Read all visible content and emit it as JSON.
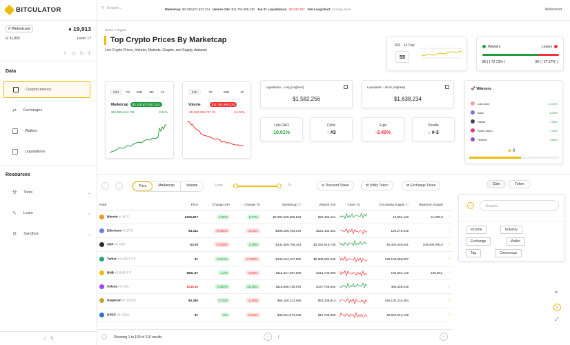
{
  "app": {
    "logo_text": "BITCULATOR"
  },
  "topbar": {
    "search_placeholder": "Search...",
    "marketcap_label": "Marketcap:",
    "marketcap_value": "$3,338,627,627,214",
    "volume_label": "Volume 24h:",
    "volume_value": "$11,762,988,230",
    "liq_label": "Jan 21 Liquidations:",
    "liq_value": "-$3,538,382",
    "longshort_label": "24H Long/short:",
    "longshort_value": "Coming Soon",
    "user": "Webwizard"
  },
  "profile": {
    "tag": "# Webwizard",
    "count": "19,913",
    "sub": "31,965",
    "level": "Level: 17"
  },
  "sidebar": {
    "data_title": "Data",
    "data_items": [
      {
        "label": "Cryptocurrency"
      },
      {
        "label": "Exchanges"
      },
      {
        "label": "Wallets"
      },
      {
        "label": "Liquidations"
      }
    ],
    "resources_title": "Resources",
    "resource_items": [
      {
        "label": "Tools"
      },
      {
        "label": "Learn"
      },
      {
        "label": "Sandbox"
      }
    ]
  },
  "breadcrumb": {
    "home": "Home",
    "sep": ">",
    "current": "Crypto"
  },
  "page": {
    "title": "Top Crypto Prices By Marketcap",
    "subtitle": "Live Crypto Prices, Volume, Markets, Graphs, and Supply datasets"
  },
  "rsi": {
    "label": "RSI - 14 Day",
    "value": "55"
  },
  "winners_losers": {
    "winners_label": "Winners",
    "losers_label": "Losers",
    "winners_count": "80",
    "winners_pct": "( 72.73% )",
    "losers_count": "30",
    "losers_pct": "( 27.27% )",
    "winners_share": 0.7273
  },
  "marketcap_card": {
    "tabs": [
      "24H",
      "7D",
      "90D",
      "3M",
      "All"
    ],
    "label": "Marketcap",
    "value": "$3,338,627,627,214",
    "change_abs": "$81,989,614,731",
    "change_pct": "2.91%"
  },
  "volume_card": {
    "tabs": [
      "24H",
      "7D",
      "90D",
      "All"
    ],
    "label": "Volume",
    "value": "$11,762,988,230",
    "change_abs": "-$5,288,396,767.76",
    "change_pct": "-44.08%"
  },
  "liquidations": {
    "long_label": "Liquidation - Long (Highest)",
    "long_value": "$1,582,256",
    "short_label": "Liquidation - short (Highest)",
    "short_value": "$1,638,234"
  },
  "mini_cards": [
    {
      "title": "Lido DAO",
      "value": "10.01%",
      "color": "#1f9c3a"
    },
    {
      "title": "Chiliz",
      "value": "#3",
      "color": "#222"
    },
    {
      "title": "Ergo",
      "value": "-3.49%",
      "color": "#e33"
    },
    {
      "title": "Pendle",
      "value": "#-3",
      "color": "#222"
    }
  ],
  "winners_card": {
    "title": "Winners",
    "rows": [
      {
        "name": "Lido DAO",
        "pct": "10.01%",
        "color": "#f5a0a0"
      },
      {
        "name": "Aave",
        "pct": "8.29%",
        "color": "#7a6fd6"
      },
      {
        "name": "Stellar",
        "pct": "7.38%",
        "color": "#444"
      },
      {
        "name": "Sushi Token",
        "pct": "7.22%",
        "color": "#e23a6a"
      },
      {
        "name": "Hedera",
        "pct": "5.65%",
        "color": "#8e4fd0"
      }
    ],
    "counter": "0"
  },
  "filters": {
    "segments": [
      "Price",
      "Marketcap",
      "Volume"
    ],
    "from_label": "From",
    "to_label": "To",
    "chips": [
      "Discount Token",
      "Utility Token",
      "Exchange Token"
    ]
  },
  "table": {
    "headers": [
      "Rank",
      "Price",
      "Change 24h",
      "Change 7d",
      "Marketcap",
      "Volume 24h",
      "Chart 7d",
      "Circulating Supply",
      "Maximum Supply"
    ],
    "rows": [
      {
        "name": "Bitcoin",
        "sym": "#1 BTC",
        "price": "$105,827",
        "c24": "1.89%",
        "c24up": true,
        "c7": "5.47%",
        "c7up": true,
        "mcap": "$2,092,825,880,534",
        "vol": "$26,492,224",
        "circ": "19,801,440",
        "max": "21,000,0",
        "color": "#f7931a"
      },
      {
        "name": "Ethereum",
        "sym": "#2 ETH",
        "price": "$3,311",
        "c24": "-0.005%",
        "c24up": false,
        "c7": "-3.31%",
        "c7up": false,
        "mcap": "$398,286,754,375",
        "vol": "$221,432,451",
        "circ": "120,275,915",
        "max": "",
        "color": "#627eea"
      },
      {
        "name": "XRP",
        "sym": "#3 XRP",
        "price": "$3.20",
        "c24": "-0.759%",
        "c24up": false,
        "c7": "2.46%",
        "c7up": true,
        "mcap": "$144,509,756,163",
        "vol": "$3,254,915,735",
        "circ": "45,404,028,841",
        "max": "100,000,000,0",
        "color": "#23292f"
      },
      {
        "name": "Tether",
        "sym": "#4 USDT ₮ ₮",
        "price": "$1",
        "c24": "0.013%",
        "c24up": true,
        "c7": "-0.002%",
        "c7up": false,
        "mcap": "$136,164,107,860",
        "vol": "$5,589,883,635",
        "circ": "136,183,859,607",
        "max": "",
        "color": "#26a17b"
      },
      {
        "name": "BNB",
        "sym": "#5 BNB ₮ ₮",
        "price": "$691.97",
        "c24": "1.3%",
        "c24up": true,
        "c7": "-3.82%",
        "c7up": false,
        "mcap": "$115,327,387,009",
        "vol": "$313,749,999",
        "circ": "166,801,148",
        "max": "166,801,",
        "color": "#f0b90b"
      },
      {
        "name": "Solana",
        "sym": "#6 SOL",
        "price": "$245.46",
        "c24": "0.539%",
        "c24up": true,
        "c7": "15.36%",
        "c7up": true,
        "mcap": "$118,568,726,076",
        "vol": "$147,748,925",
        "circ": "486,339,518",
        "max": "",
        "color": "#9945ff",
        "price_red": true
      },
      {
        "name": "Dogecoin",
        "sym": "#7 DOGE",
        "price": "$0.380",
        "c24": "3.76%",
        "c24up": true,
        "c7": "-1.36%",
        "c7up": false,
        "mcap": "$55,180,241,068",
        "vol": "$52,238,913",
        "circ": "145,130,216,384",
        "max": "",
        "color": "#c2a633"
      },
      {
        "name": "USDC",
        "sym": "#8 USDC",
        "price": "$1",
        "c24": "0%",
        "c24up": true,
        "c7": "-0.01%",
        "c7up": false,
        "mcap": "$38,964,973,158",
        "vol": "$12,756,999",
        "circ": "38,964,042,139",
        "max": "",
        "color": "#2775ca"
      }
    ]
  },
  "footer": {
    "showing": "Showing 1 to 100 of 110 results",
    "page": "1",
    "sep": "/"
  },
  "right_panel": {
    "tabs": [
      "Coin",
      "Token"
    ],
    "search_placeholder": "Search...",
    "tags": [
      "Income",
      "Industry",
      "Exchange",
      "Wallet",
      "Tag",
      "Consensus"
    ]
  }
}
